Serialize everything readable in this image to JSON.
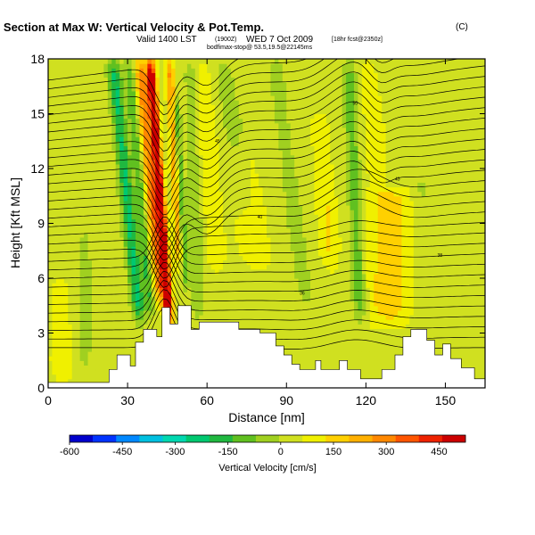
{
  "chart_data": {
    "type": "heatmap",
    "title": "Wind-Parallel Section at Max W: Vertical Velocity & Pot.Temp.",
    "title_mark": "(C)",
    "subtitle_main": "Valid 1400 LST",
    "subtitle_utc": "(1900Z)",
    "subtitle_date": "WED 7 Oct 2009",
    "subtitle_fcst": "[18hr fcst@2350z]",
    "credit": "bodfimax-stop@ 53.5,19.5@22145ms",
    "xlabel": "Distance [nm]",
    "ylabel": "Height [Kft MSL]",
    "xlim": [
      0,
      165
    ],
    "ylim": [
      0,
      18
    ],
    "x_ticks": [
      0,
      30,
      60,
      90,
      120,
      150
    ],
    "y_ticks": [
      0,
      3,
      6,
      9,
      12,
      15,
      18
    ],
    "colorbar": {
      "label": "Vertical Velocity [cm/s]",
      "min": -600,
      "max": 525,
      "tick_values": [
        -600,
        -450,
        -300,
        -150,
        0,
        150,
        300,
        450
      ],
      "tick_labels": [
        "-600",
        "-450",
        "-300",
        "-150",
        "0",
        "150",
        "300",
        "450"
      ],
      "colors": [
        "#0000cc",
        "#0033ff",
        "#0088ff",
        "#00c0e0",
        "#00d8b0",
        "#00c870",
        "#20b840",
        "#60c020",
        "#a0d020",
        "#d0e020",
        "#f0f000",
        "#ffd000",
        "#ffb000",
        "#ff8800",
        "#ff5500",
        "#ee2200",
        "#cc0000"
      ]
    },
    "velocity_features": [
      {
        "x": 46,
        "halfwidth": 1.6,
        "slope": -0.5,
        "amp": 560,
        "z0": 3,
        "z1": 18
      },
      {
        "x": 43,
        "halfwidth": 2.2,
        "slope": -0.6,
        "amp": 260,
        "z0": 4,
        "z1": 18
      },
      {
        "x": 50,
        "halfwidth": 1.4,
        "slope": -0.35,
        "amp": 230,
        "z0": 6,
        "z1": 18
      },
      {
        "x": 35,
        "halfwidth": 2.6,
        "slope": -0.7,
        "amp": -260,
        "z0": 3,
        "z1": 18
      },
      {
        "x": 39,
        "halfwidth": 1.8,
        "slope": -0.6,
        "amp": -180,
        "z0": 3.5,
        "z1": 18
      },
      {
        "x": 52,
        "halfwidth": 1.4,
        "slope": -0.35,
        "amp": -190,
        "z0": 5,
        "z1": 16
      },
      {
        "x": 57,
        "halfwidth": 3.0,
        "slope": -0.2,
        "amp": -110,
        "z0": 3,
        "z1": 18
      },
      {
        "x": 63,
        "halfwidth": 4.0,
        "slope": -0.5,
        "amp": 70,
        "z0": 6,
        "z1": 18
      },
      {
        "x": 75,
        "halfwidth": 4.0,
        "slope": -1.0,
        "amp": -90,
        "z0": 9,
        "z1": 18
      },
      {
        "x": 80,
        "halfwidth": 5.0,
        "slope": -1.0,
        "amp": 60,
        "z0": 6,
        "z1": 14
      },
      {
        "x": 98,
        "halfwidth": 3.0,
        "slope": -0.9,
        "amp": -100,
        "z0": 4,
        "z1": 18
      },
      {
        "x": 107,
        "halfwidth": 3.0,
        "slope": -0.5,
        "amp": 80,
        "z0": 6,
        "z1": 15
      },
      {
        "x": 118,
        "halfwidth": 2.6,
        "slope": -0.3,
        "amp": -150,
        "z0": 3,
        "z1": 18
      },
      {
        "x": 129,
        "halfwidth": 7.0,
        "slope": 0.0,
        "amp": 140,
        "z0": 3,
        "z1": 11
      },
      {
        "x": 125,
        "halfwidth": 3.0,
        "slope": -0.5,
        "amp": 60,
        "z0": 10,
        "z1": 18
      },
      {
        "x": 142,
        "halfwidth": 3.5,
        "slope": -0.2,
        "amp": -60,
        "z0": 6,
        "z1": 12
      },
      {
        "x": 14,
        "halfwidth": 3.0,
        "slope": 0.0,
        "amp": -70,
        "z0": 0,
        "z1": 9
      },
      {
        "x": 5,
        "halfwidth": 4.0,
        "slope": 0.0,
        "amp": 50,
        "z0": 0,
        "z1": 6
      }
    ],
    "terrain": [
      [
        0,
        0.3
      ],
      [
        10,
        0.3
      ],
      [
        23,
        0.3
      ],
      [
        23,
        1.0
      ],
      [
        26,
        1.0
      ],
      [
        26,
        1.8
      ],
      [
        31,
        1.8
      ],
      [
        31,
        1.2
      ],
      [
        33,
        1.2
      ],
      [
        33,
        2.5
      ],
      [
        36,
        2.5
      ],
      [
        36,
        3.2
      ],
      [
        41,
        3.2
      ],
      [
        41,
        2.8
      ],
      [
        43,
        2.8
      ],
      [
        43,
        4.4
      ],
      [
        46,
        4.4
      ],
      [
        46,
        3.5
      ],
      [
        49,
        3.5
      ],
      [
        49,
        4.5
      ],
      [
        54,
        4.5
      ],
      [
        54,
        3.2
      ],
      [
        57,
        3.2
      ],
      [
        57,
        3.6
      ],
      [
        72,
        3.6
      ],
      [
        72,
        3.2
      ],
      [
        80,
        3.2
      ],
      [
        80,
        3.0
      ],
      [
        86,
        3.0
      ],
      [
        86,
        2.3
      ],
      [
        89,
        2.3
      ],
      [
        89,
        1.8
      ],
      [
        92,
        1.8
      ],
      [
        92,
        1.3
      ],
      [
        95,
        1.3
      ],
      [
        95,
        1.0
      ],
      [
        101,
        1.0
      ],
      [
        101,
        1.5
      ],
      [
        103,
        1.5
      ],
      [
        103,
        1.0
      ],
      [
        110,
        1.0
      ],
      [
        110,
        1.5
      ],
      [
        113,
        1.5
      ],
      [
        113,
        1.0
      ],
      [
        118,
        1.0
      ],
      [
        118,
        0.5
      ],
      [
        126,
        0.5
      ],
      [
        126,
        1.0
      ],
      [
        131,
        1.0
      ],
      [
        131,
        1.8
      ],
      [
        134,
        1.8
      ],
      [
        134,
        2.8
      ],
      [
        137,
        2.8
      ],
      [
        137,
        3.2
      ],
      [
        143,
        3.2
      ],
      [
        143,
        2.6
      ],
      [
        146,
        2.6
      ],
      [
        146,
        1.8
      ],
      [
        149,
        1.8
      ],
      [
        149,
        2.4
      ],
      [
        152,
        2.4
      ],
      [
        152,
        1.6
      ],
      [
        156,
        1.6
      ],
      [
        156,
        1.1
      ],
      [
        161,
        1.1
      ],
      [
        161,
        0.5
      ],
      [
        165,
        0.5
      ]
    ],
    "isentrope_labels": [
      "35",
      "36",
      "38",
      "40",
      "43",
      "45",
      "50",
      "53"
    ]
  }
}
